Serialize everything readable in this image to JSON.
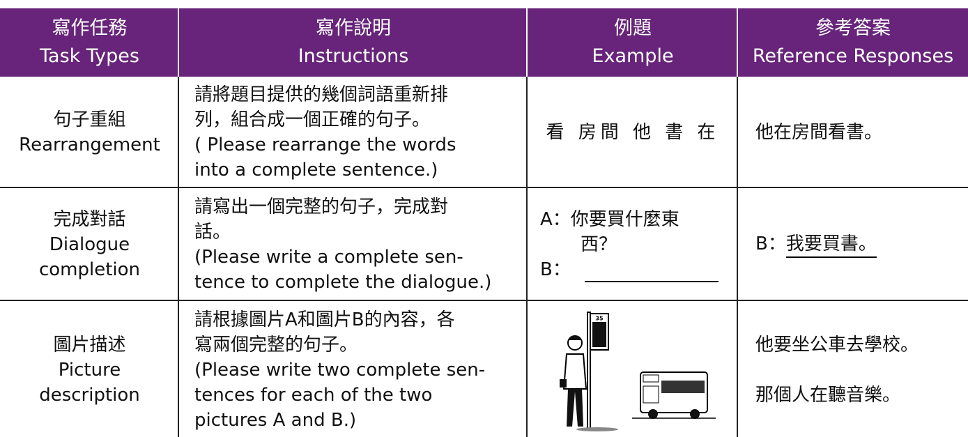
{
  "header": {
    "columns": [
      {
        "zh": "寫作任務",
        "en": "Task Types"
      },
      {
        "zh": "寫作說明",
        "en": "Instructions"
      },
      {
        "zh": "例題",
        "en": "Example"
      },
      {
        "zh": "參考答案",
        "en": "Reference Responses"
      }
    ]
  },
  "rows": [
    {
      "task": [
        "句子重組",
        "Rearrangement"
      ],
      "instructions": [
        "請將題目提供的幾個詞語重新排",
        "列，組合成一個正確的句子。",
        "( Please rearrange the words",
        "into a complete sentence.)"
      ],
      "example": [
        "看 房間 他 書 在"
      ],
      "reference": [
        "他在房間看書。"
      ]
    },
    {
      "task": [
        "完成對話",
        "Dialogue",
        "completion"
      ],
      "instructions": [
        "請寫出一個完整的句子，完成對",
        "話。",
        "(Please write a complete sen-",
        "tence to complete the dialogue.)"
      ],
      "example": [
        "A：你要買什麼東",
        "西？",
        "B："
      ],
      "reference": [
        "B：",
        "我要買書。"
      ]
    },
    {
      "task": [
        "圖片描述",
        "Picture",
        "description"
      ],
      "instructions": [
        "請根據圖片A和圖片B的內容，各",
        "寫兩個完整的句子。",
        "(Please write two complete sen-",
        "tences for each of the two",
        "pictures A and B.)"
      ],
      "example_sign": "35",
      "reference": [
        "他要坐公車去學校。",
        "那個人在聽音樂。"
      ]
    }
  ]
}
